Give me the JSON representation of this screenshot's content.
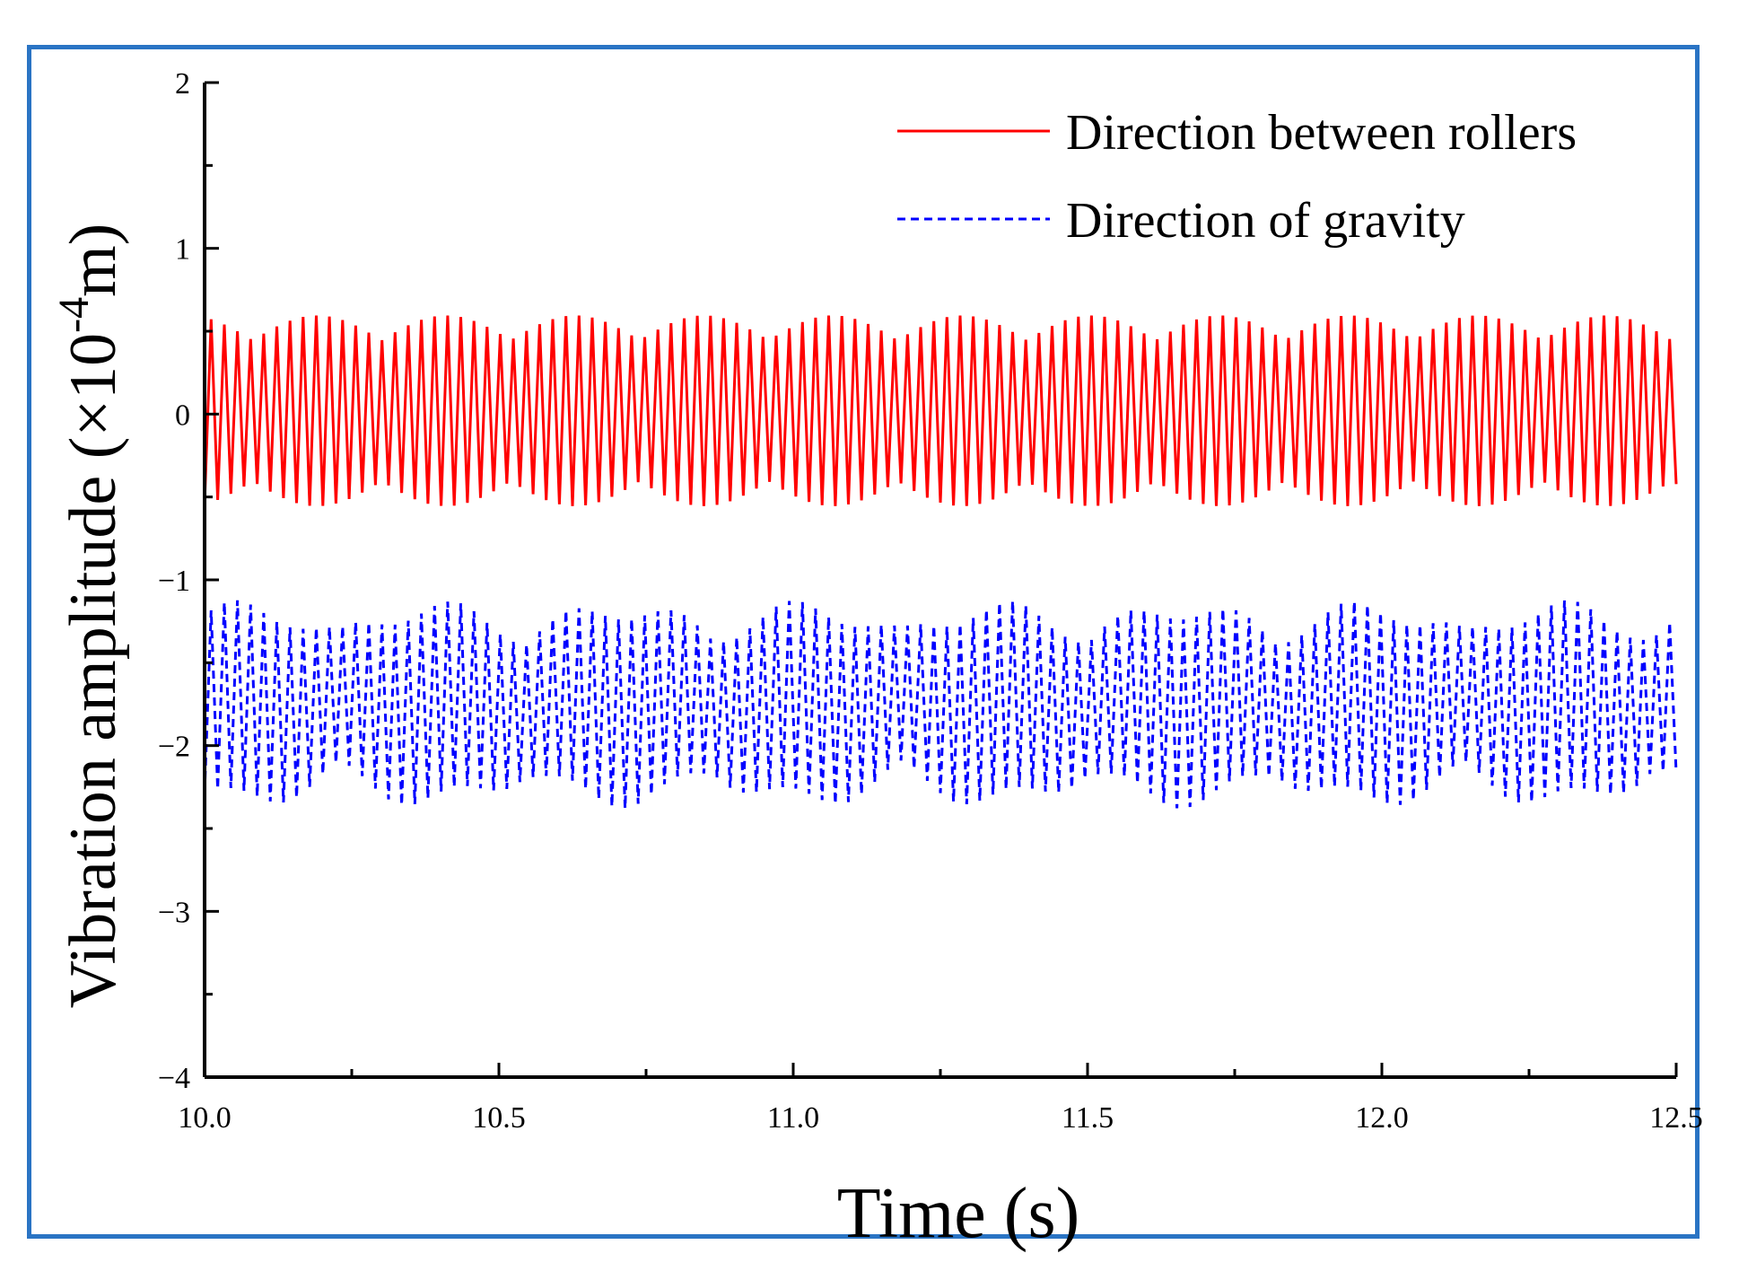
{
  "chart_data": {
    "type": "line",
    "xlabel": "Time (s)",
    "ylabel_main": "Vibration amplitude (×10",
    "ylabel_sup": "-4",
    "ylabel_tail": "m)",
    "xlim": [
      10.0,
      12.5
    ],
    "ylim": [
      -4,
      2
    ],
    "x_ticks": [
      10.0,
      10.5,
      11.0,
      11.5,
      12.0,
      12.5
    ],
    "x_tick_labels": [
      "10.0",
      "10.5",
      "11.0",
      "11.5",
      "12.0",
      "12.5"
    ],
    "y_ticks": [
      2,
      1,
      0,
      -1,
      -2,
      -3,
      -4
    ],
    "y_tick_labels": [
      "2",
      "1",
      "0",
      "−1",
      "−2",
      "−3",
      "−4"
    ],
    "frame_color": "#2a74c4",
    "series": [
      {
        "name": "Direction between rollers",
        "color": "#ff0000",
        "style": "solid",
        "x_start": 10.0,
        "x_end": 12.5,
        "cycles": 112,
        "points_per_cycle": 2,
        "max": 0.58,
        "min": -0.57,
        "mean": 0.0
      },
      {
        "name": "Direction of gravity",
        "color": "#0000ff",
        "style": "dashed",
        "x_start": 10.0,
        "x_end": 12.5,
        "cycles": 112,
        "points_per_cycle": 2,
        "max": -1.19,
        "min": -2.33,
        "mean": -1.75
      }
    ],
    "legend_position": "top-right"
  }
}
